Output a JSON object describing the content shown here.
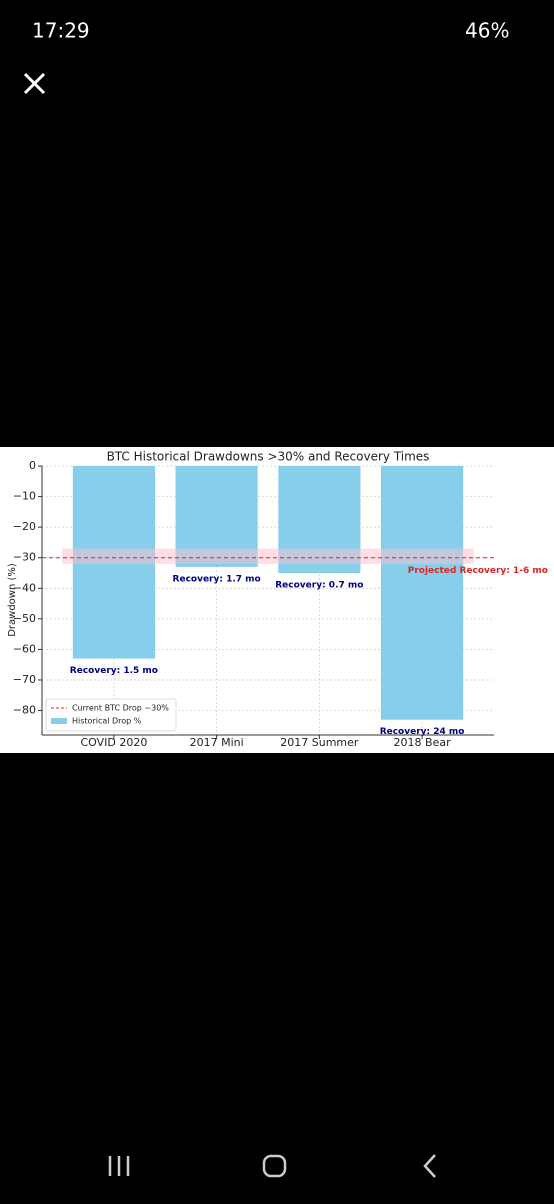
{
  "status_bar": {
    "time": "17:29",
    "battery": "46%"
  },
  "chart_data": {
    "type": "bar",
    "title": "BTC Historical Drawdowns >30% and Recovery Times",
    "ylabel": "Drawdown (%)",
    "categories": [
      "COVID 2020",
      "2017 Mini",
      "2017 Summer",
      "2018 Bear"
    ],
    "series": [
      {
        "name": "Historical Drop %",
        "color": "#87ceeb",
        "values": [
          -63,
          -33,
          -35,
          -83
        ]
      }
    ],
    "annotations": [
      "Recovery: 1.5 mo",
      "Recovery: 1.7 mo",
      "Recovery: 0.7 mo",
      "Recovery: 24 mo"
    ],
    "reference_line": {
      "name": "Current BTC Drop ~30%",
      "value": -30,
      "color": "#d62728"
    },
    "projected_band": {
      "range": [
        -32,
        -27
      ],
      "color": "#ffc0cb",
      "label": "Projected Recovery: 1-6 mo"
    },
    "ylim": [
      -88,
      0
    ],
    "yticks": [
      0,
      {
        "value": -10,
        "label": "−10"
      },
      {
        "value": -20,
        "label": "−20"
      },
      {
        "value": -30,
        "label": "−30"
      },
      {
        "value": -40,
        "label": "−40"
      },
      {
        "value": -50,
        "label": "−50"
      },
      {
        "value": -60,
        "label": "−60"
      },
      {
        "value": -70,
        "label": "−70"
      },
      {
        "value": -80,
        "label": "−80"
      }
    ],
    "grid": true,
    "legend": "lower left"
  }
}
